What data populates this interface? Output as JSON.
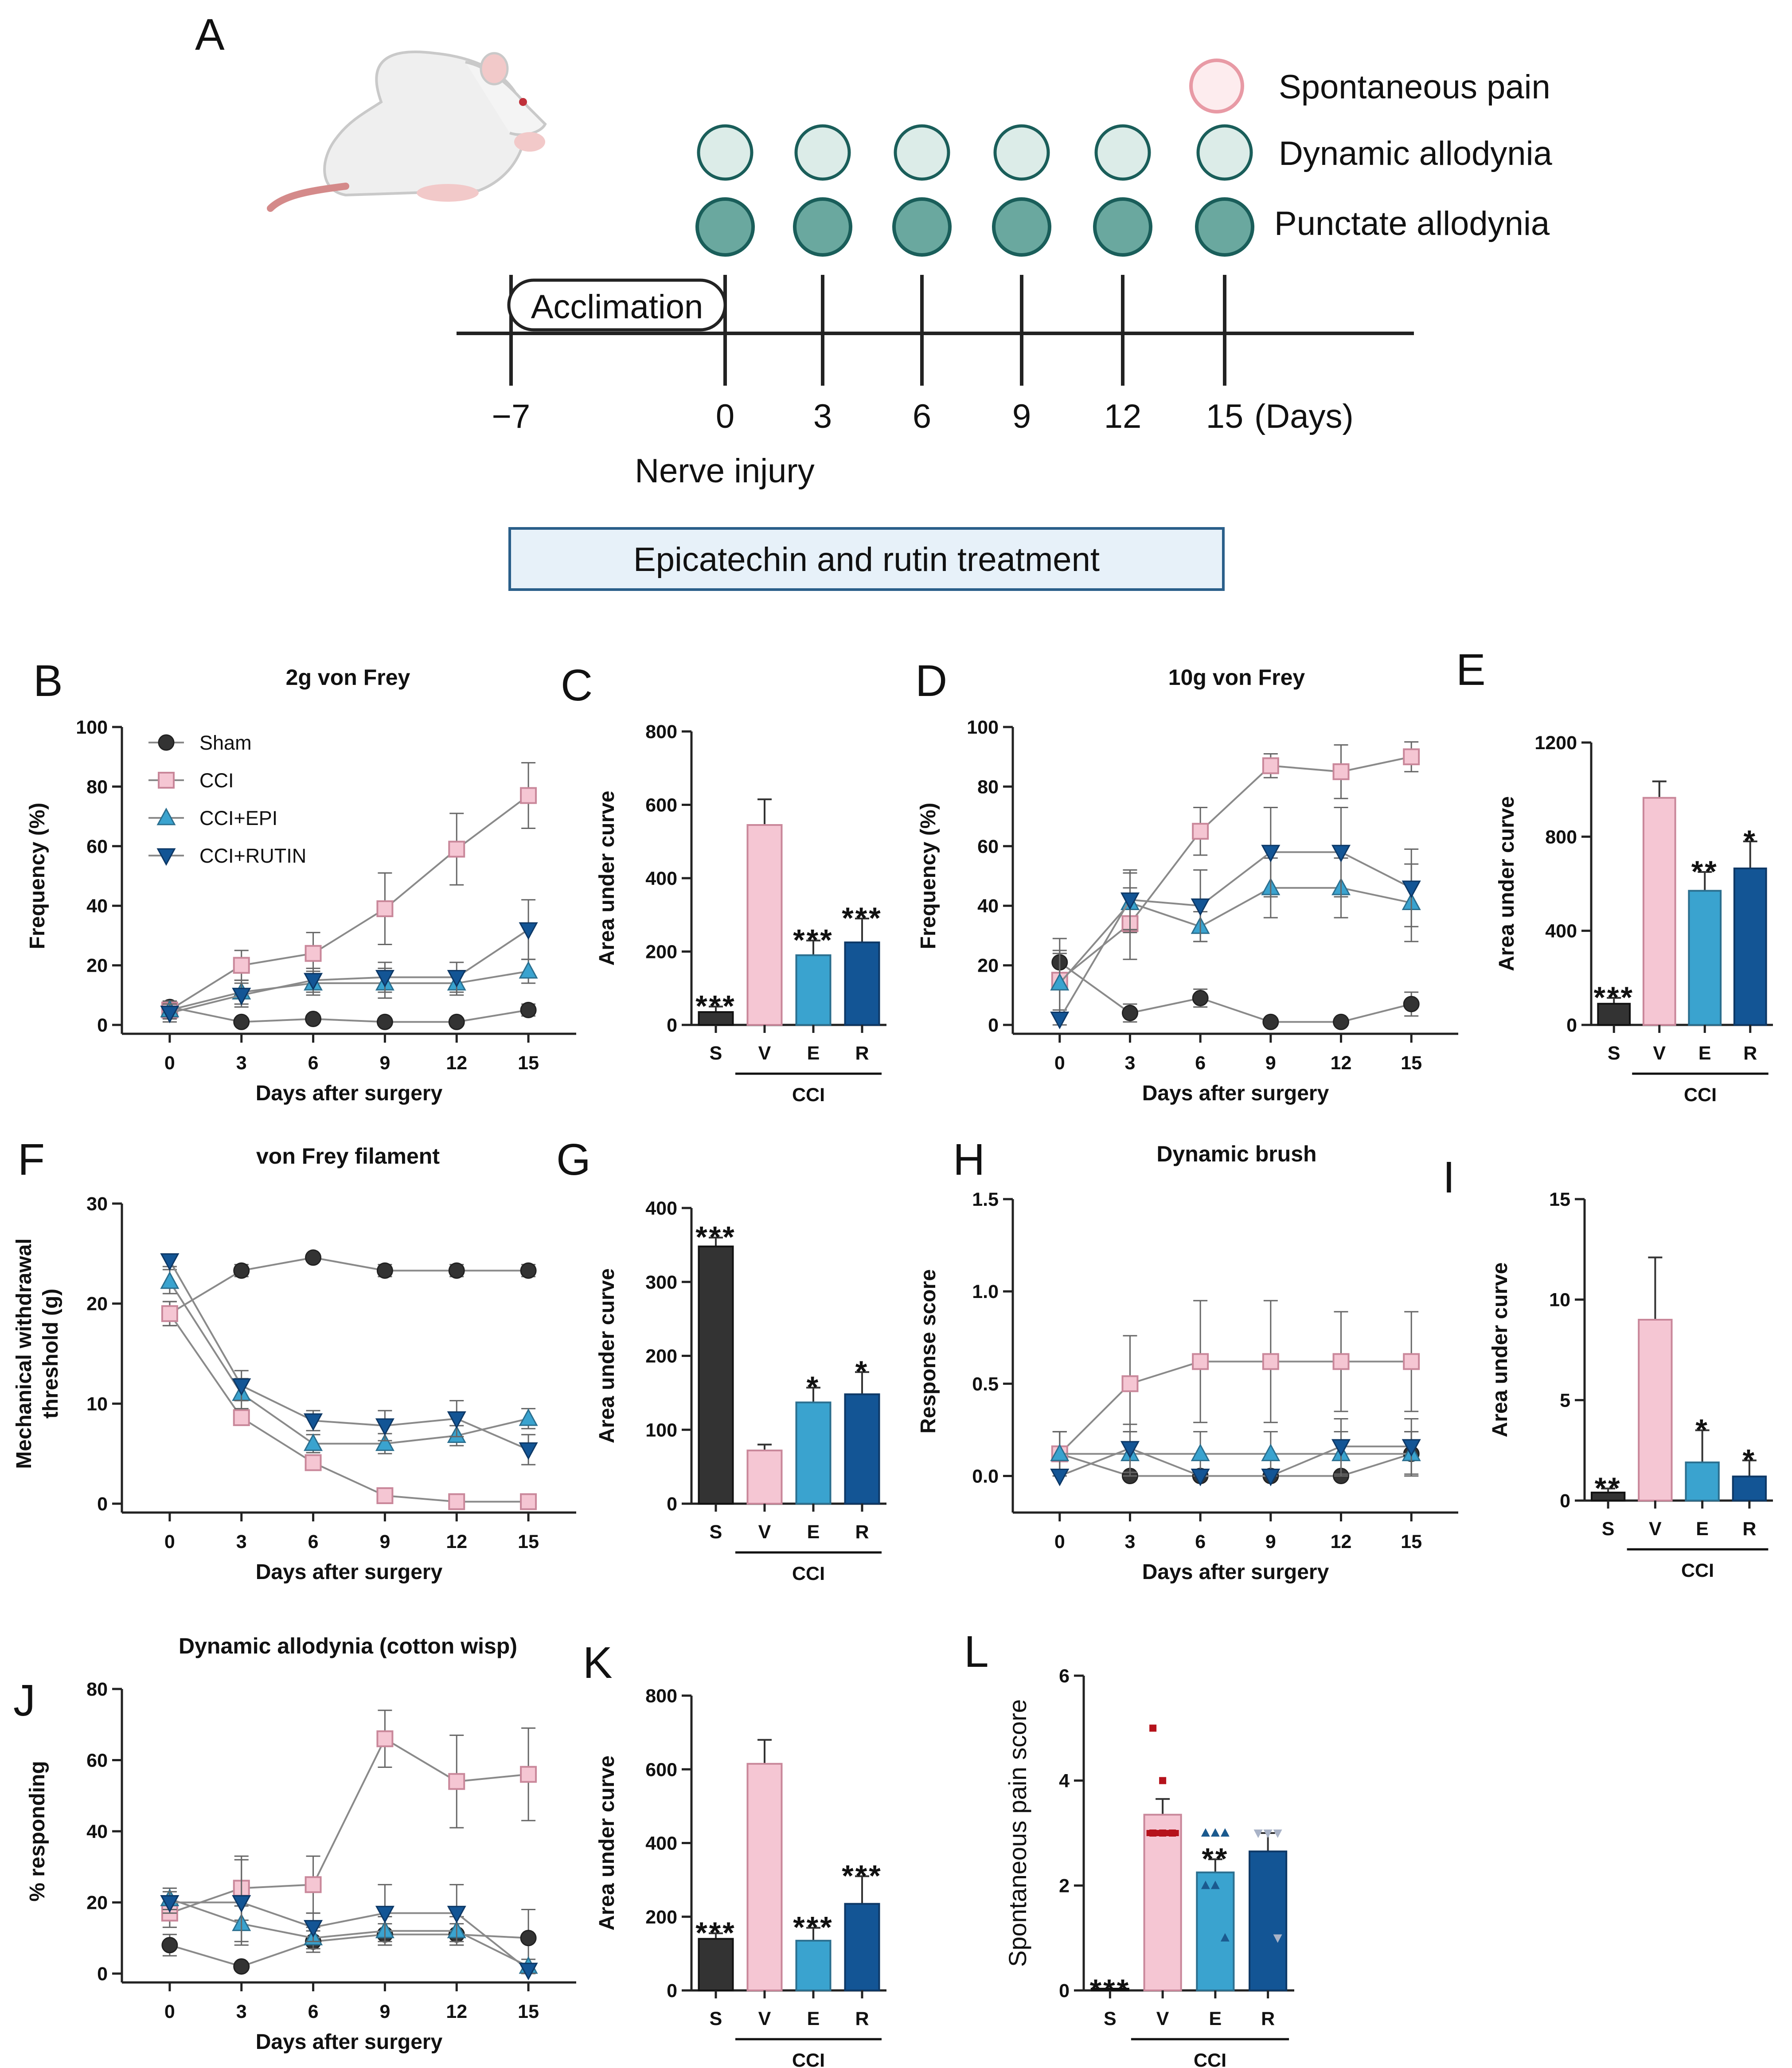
{
  "colors": {
    "sham": "#333333",
    "cci": "#f5c6d3",
    "epi": "#3aa3cf",
    "rutin": "#135595",
    "line": "#8a8a8a",
    "dark": "#1a5e5a",
    "light_fill": "#dcece8",
    "dark_fill": "#6aa89f",
    "pain_edge": "#e89aa5",
    "pain_fill": "#fdecee",
    "box_fill": "#e7f1f9",
    "box_edge": "#2a5f8a"
  },
  "panelA": {
    "label": "A",
    "legend": [
      {
        "id": "pain",
        "label": "Spontaneous pain"
      },
      {
        "id": "dynamic",
        "label": "Dynamic allodynia"
      },
      {
        "id": "punctate",
        "label": "Punctate allodynia"
      }
    ],
    "acclimation": "Acclimation",
    "days": [
      "−7",
      "0",
      "3",
      "6",
      "9",
      "12",
      "15"
    ],
    "days_unit": "(Days)",
    "nerve_injury": "Nerve injury",
    "treatment": "Epicatechin and rutin treatment"
  },
  "legend": [
    {
      "name": "Sham",
      "marker": "circle",
      "color": "sham"
    },
    {
      "name": "CCI",
      "marker": "square",
      "color": "cci"
    },
    {
      "name": "CCI+EPI",
      "marker": "triangle-up",
      "color": "epi"
    },
    {
      "name": "CCI+RUTIN",
      "marker": "triangle-down",
      "color": "rutin"
    }
  ],
  "chart_data": [
    {
      "id": "B",
      "type": "line",
      "label": "B",
      "title": "2g von Frey",
      "xlabel": "Days after surgery",
      "ylabel": "Frequency (%)",
      "x": [
        0,
        3,
        6,
        9,
        12,
        15
      ],
      "ylim": [
        0,
        100
      ],
      "yticks": [
        0,
        20,
        40,
        60,
        80,
        100
      ],
      "legend": true,
      "series": [
        {
          "name": "Sham",
          "values": [
            6,
            1,
            2,
            1,
            1,
            5
          ],
          "err": [
            2,
            1,
            1,
            1,
            1,
            2
          ]
        },
        {
          "name": "CCI",
          "values": [
            5,
            20,
            24,
            39,
            59,
            77
          ],
          "err": [
            3,
            5,
            7,
            12,
            12,
            11
          ]
        },
        {
          "name": "CCI+EPI",
          "values": [
            5,
            11,
            14,
            14,
            14,
            18
          ],
          "err": [
            3,
            4,
            4,
            5,
            4,
            4
          ]
        },
        {
          "name": "CCI+RUTIN",
          "values": [
            4,
            10,
            15,
            16,
            16,
            32
          ],
          "err": [
            3,
            4,
            4,
            5,
            5,
            10
          ]
        }
      ]
    },
    {
      "id": "C",
      "type": "bar",
      "label": "C",
      "ylabel": "Area under curve",
      "ylim": [
        0,
        800
      ],
      "yticks": [
        0,
        200,
        400,
        600,
        800
      ],
      "categories": [
        "S",
        "V",
        "E",
        "R"
      ],
      "values": [
        35,
        545,
        190,
        225
      ],
      "err": [
        15,
        70,
        40,
        65
      ],
      "stars": [
        "***",
        "",
        "***",
        "***"
      ],
      "group_label": "CCI"
    },
    {
      "id": "D",
      "type": "line",
      "label": "D",
      "title": "10g von  Frey",
      "xlabel": "Days after surgery",
      "ylabel": "Frequency (%)",
      "x": [
        0,
        3,
        6,
        9,
        12,
        15
      ],
      "ylim": [
        0,
        100
      ],
      "yticks": [
        0,
        20,
        40,
        60,
        80,
        100
      ],
      "series": [
        {
          "name": "Sham",
          "values": [
            21,
            4,
            9,
            1,
            1,
            7
          ],
          "err": [
            8,
            3,
            3,
            1,
            1,
            4
          ]
        },
        {
          "name": "CCI",
          "values": [
            15,
            34,
            65,
            87,
            85,
            90
          ],
          "err": [
            10,
            12,
            8,
            4,
            9,
            5
          ]
        },
        {
          "name": "CCI+EPI",
          "values": [
            14,
            41,
            33,
            46,
            46,
            41
          ],
          "err": [
            10,
            10,
            5,
            10,
            10,
            13
          ]
        },
        {
          "name": "CCI+RUTIN",
          "values": [
            2,
            42,
            40,
            58,
            58,
            46
          ],
          "err": [
            2,
            10,
            12,
            15,
            15,
            13
          ]
        }
      ]
    },
    {
      "id": "E",
      "type": "bar",
      "label": "E",
      "ylabel": "Area under curve",
      "ylim": [
        0,
        1200
      ],
      "yticks": [
        0,
        400,
        800,
        1200
      ],
      "categories": [
        "S",
        "V",
        "E",
        "R"
      ],
      "values": [
        90,
        965,
        570,
        665
      ],
      "err": [
        25,
        70,
        80,
        115
      ],
      "stars": [
        "***",
        "",
        "**",
        "*"
      ],
      "group_label": "CCI"
    },
    {
      "id": "F",
      "type": "line",
      "label": "F",
      "title": "von Frey filament",
      "xlabel": "Days after surgery",
      "ylabel": "Mechanical withdrawal threshold (g)",
      "x": [
        0,
        3,
        6,
        9,
        12,
        15
      ],
      "ylim": [
        0,
        30
      ],
      "yticks": [
        0,
        10,
        20,
        30
      ],
      "series": [
        {
          "name": "Sham",
          "values": [
            19,
            23.3,
            24.6,
            23.3,
            23.3,
            23.3
          ],
          "err": [
            1.2,
            0.6,
            0.3,
            0.6,
            0.6,
            0.6
          ]
        },
        {
          "name": "CCI",
          "values": [
            19,
            8.6,
            4.1,
            0.8,
            0.2,
            0.2
          ],
          "err": [
            1.2,
            0.5,
            0.5,
            0.3,
            0.2,
            0.2
          ]
        },
        {
          "name": "CCI+EPI",
          "values": [
            22.2,
            11,
            6,
            6,
            6.8,
            8.5
          ],
          "err": [
            1.2,
            1.5,
            0.9,
            1,
            1,
            1
          ]
        },
        {
          "name": "CCI+RUTIN",
          "values": [
            24.3,
            11.8,
            8.3,
            7.8,
            8.5,
            5.4
          ],
          "err": [
            0.6,
            1.5,
            1,
            1.5,
            1.8,
            1.5
          ]
        }
      ]
    },
    {
      "id": "G",
      "type": "bar",
      "label": "G",
      "ylabel": "Area under curve",
      "ylim": [
        0,
        400
      ],
      "yticks": [
        0,
        100,
        200,
        300,
        400
      ],
      "categories": [
        "S",
        "V",
        "E",
        "R"
      ],
      "values": [
        348,
        72,
        137,
        148
      ],
      "err": [
        12,
        8,
        20,
        30
      ],
      "stars": [
        "***",
        "",
        "*",
        "*"
      ],
      "group_label": "CCI"
    },
    {
      "id": "H",
      "type": "line",
      "label": "H",
      "title": "Dynamic brush",
      "xlabel": "Days after surgery",
      "ylabel": "Response score",
      "x": [
        0,
        3,
        6,
        9,
        12,
        15
      ],
      "ylim": [
        -0.15,
        1.5
      ],
      "yticks": [
        0.0,
        0.5,
        1.0,
        1.5
      ],
      "ytick_labels": [
        "0.0",
        "0.5",
        "1.0",
        "1.5"
      ],
      "series": [
        {
          "name": "Sham",
          "values": [
            0.12,
            0,
            0,
            0,
            0,
            0.12
          ],
          "err": [
            0.12,
            0,
            0,
            0,
            0,
            0.12
          ]
        },
        {
          "name": "CCI",
          "values": [
            0.12,
            0.5,
            0.62,
            0.62,
            0.62,
            0.62
          ],
          "err": [
            0.12,
            0.26,
            0.33,
            0.33,
            0.27,
            0.27
          ]
        },
        {
          "name": "CCI+EPI",
          "values": [
            0.12,
            0.12,
            0.12,
            0.12,
            0.12,
            0.12
          ],
          "err": [
            0.12,
            0.12,
            0.12,
            0.12,
            0.12,
            0.12
          ]
        },
        {
          "name": "CCI+RUTIN",
          "values": [
            0,
            0.15,
            0,
            0,
            0.16,
            0.16
          ],
          "err": [
            0,
            0.13,
            0,
            0,
            0.15,
            0.15
          ]
        }
      ]
    },
    {
      "id": "I",
      "type": "bar",
      "label": "I",
      "ylabel": "Area under curve",
      "ylim": [
        0,
        15
      ],
      "yticks": [
        0,
        5,
        10,
        15
      ],
      "categories": [
        "S",
        "V",
        "E",
        "R"
      ],
      "values": [
        0.4,
        9,
        1.9,
        1.2
      ],
      "err": [
        0.2,
        3.1,
        1.6,
        0.8
      ],
      "stars": [
        "**",
        "",
        "*",
        "*"
      ],
      "group_label": "CCI"
    },
    {
      "id": "J",
      "type": "line",
      "label": "J",
      "title": "Dynamic allodynia  (cotton wisp)",
      "xlabel": "Days after surgery",
      "ylabel": "% responding",
      "x": [
        0,
        3,
        6,
        9,
        12,
        15
      ],
      "ylim": [
        0,
        80
      ],
      "yticks": [
        0,
        20,
        40,
        60,
        80
      ],
      "series": [
        {
          "name": "Sham",
          "values": [
            8,
            2,
            9,
            11,
            11,
            10
          ],
          "err": [
            3,
            1,
            3,
            3,
            3,
            8
          ]
        },
        {
          "name": "CCI",
          "values": [
            17,
            24,
            25,
            66,
            54,
            56
          ],
          "err": [
            4,
            9,
            8,
            8,
            13,
            13
          ]
        },
        {
          "name": "CCI+EPI",
          "values": [
            21,
            14,
            10,
            12,
            12,
            2
          ],
          "err": [
            3,
            5,
            3,
            4,
            4,
            2
          ]
        },
        {
          "name": "CCI+RUTIN",
          "values": [
            20,
            20,
            13,
            17,
            17,
            1
          ],
          "err": [
            3,
            12,
            4,
            8,
            8,
            1
          ]
        }
      ]
    },
    {
      "id": "K",
      "type": "bar",
      "label": "K",
      "ylabel": "Area under curve",
      "ylim": [
        0,
        800
      ],
      "yticks": [
        0,
        200,
        400,
        600,
        800
      ],
      "categories": [
        "S",
        "V",
        "E",
        "R"
      ],
      "values": [
        140,
        615,
        135,
        235
      ],
      "err": [
        15,
        65,
        35,
        75
      ],
      "stars": [
        "***",
        "",
        "***",
        "***"
      ],
      "group_label": "CCI"
    },
    {
      "id": "L",
      "type": "bar",
      "label": "L",
      "ylabel": "Spontaneous pain score",
      "ylim": [
        0,
        6
      ],
      "yticks": [
        0,
        2,
        4,
        6
      ],
      "categories": [
        "S",
        "V",
        "E",
        "R"
      ],
      "values": [
        0,
        3.35,
        2.25,
        2.65
      ],
      "err": [
        0,
        0.3,
        0.25,
        0.35
      ],
      "stars": [
        "***",
        "",
        "**",
        ""
      ],
      "group_label": "CCI",
      "points": [
        [
          0,
          0,
          0,
          0,
          0,
          0
        ],
        [
          5,
          4,
          3,
          3,
          3,
          3
        ],
        [
          3,
          3,
          3,
          2,
          2,
          1
        ],
        [
          3,
          3,
          3,
          3,
          3,
          1
        ]
      ]
    }
  ]
}
